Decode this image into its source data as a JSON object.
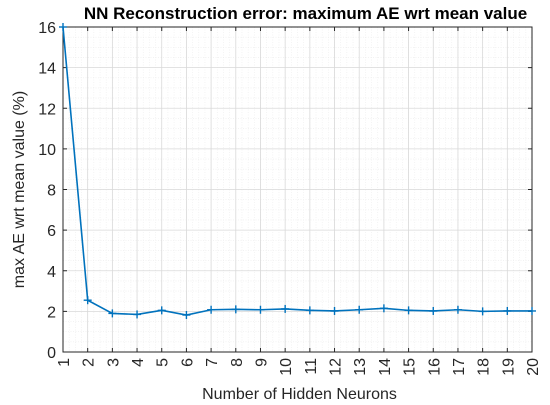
{
  "chart_data": {
    "type": "line",
    "title": "NN Reconstruction error: maximum AE wrt mean value",
    "xlabel": "Number of Hidden Neurons",
    "ylabel": "max AE wrt mean value (%)",
    "xlim": [
      1,
      20
    ],
    "ylim": [
      0,
      16
    ],
    "x_ticks": [
      1,
      2,
      3,
      4,
      5,
      6,
      7,
      8,
      9,
      10,
      11,
      12,
      13,
      14,
      15,
      16,
      17,
      18,
      19,
      20
    ],
    "y_ticks": [
      0,
      2,
      4,
      6,
      8,
      10,
      12,
      14,
      16
    ],
    "grid": true,
    "minor_grid": true,
    "line_color": "#0072BD",
    "marker": "plus",
    "series": [
      {
        "x": [
          1,
          2,
          3,
          4,
          5,
          6,
          7,
          8,
          9,
          10,
          11,
          12,
          13,
          14,
          15,
          16,
          17,
          18,
          19,
          20
        ],
        "values": [
          16.0,
          2.55,
          1.9,
          1.85,
          2.05,
          1.82,
          2.08,
          2.1,
          2.08,
          2.12,
          2.05,
          2.02,
          2.08,
          2.15,
          2.05,
          2.02,
          2.08,
          2.0,
          2.02,
          2.02
        ]
      }
    ]
  }
}
